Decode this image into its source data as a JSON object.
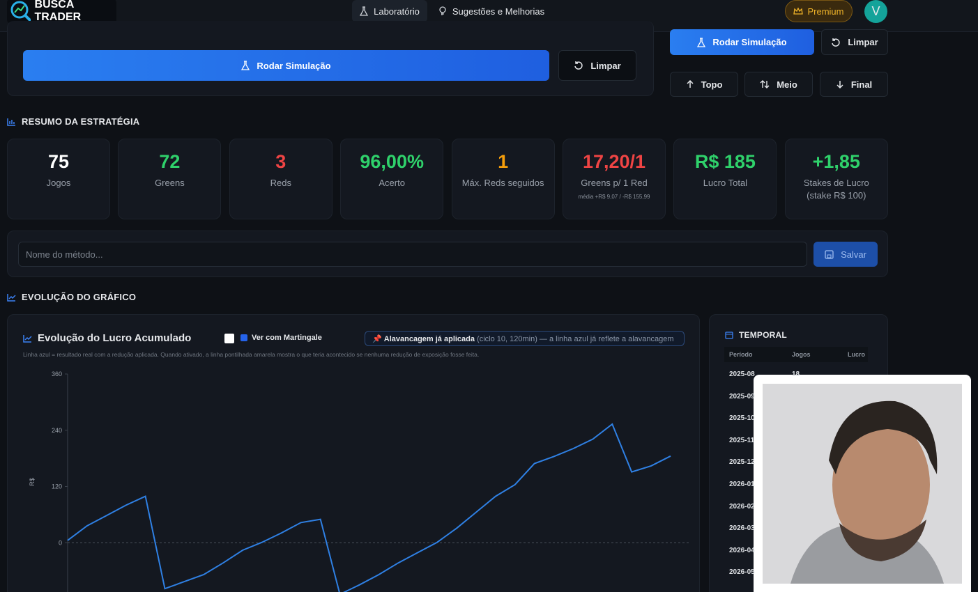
{
  "nav": {
    "brand": "BUSCA TRADER",
    "links": [
      "Laboratório",
      "Sugestões e Melhorias"
    ],
    "premium": "Premium",
    "avatar": "V"
  },
  "simulation": {
    "run": "Rodar Simulação",
    "clear": "Limpar"
  },
  "side": {
    "run": "Rodar Simulação",
    "clear": "Limpar",
    "top": "Topo",
    "middle": "Meio",
    "end": "Final"
  },
  "summary": {
    "heading": "RESUMO DA ESTRATÉGIA",
    "cards": [
      {
        "value": "75",
        "label": "Jogos"
      },
      {
        "value": "72",
        "label": "Greens"
      },
      {
        "value": "3",
        "label": "Reds"
      },
      {
        "value": "96,00%",
        "label": "Acerto"
      },
      {
        "value": "1",
        "label": "Máx. Reds seguidos"
      },
      {
        "value": "17,20/1",
        "label": "Greens p/ 1 Red",
        "note": "média +R$ 9,07 / -R$ 155,99"
      },
      {
        "value": "R$ 185",
        "label": "Lucro Total"
      },
      {
        "value": "+1,85",
        "label": "Stakes de Lucro (stake R$ 100)"
      }
    ]
  },
  "save": {
    "placeholder": "Nome do método...",
    "button": "Salvar"
  },
  "evolution": {
    "heading": "EVOLUÇÃO DO GRÁFICO",
    "title": "Evolução do Lucro Acumulado",
    "toggle": "Ver com Martingale",
    "badge": "Alavancagem já aplicada",
    "badge_detail": "(ciclo 10, 120min) — a linha azul já reflete a alavancagem",
    "note": "Linha azul = resultado real com a redução aplicada. Quando ativado, a linha pontilhada amarela mostra o que teria acontecido se nenhuma redução de exposição fosse feita."
  },
  "chart": {
    "type": "line",
    "ylabel": "R$",
    "ylim": [
      -120,
      360
    ],
    "yticks": [
      360,
      240,
      120,
      0
    ],
    "color": "#2f80e4",
    "values": [
      5,
      36,
      58,
      80,
      99,
      -98,
      -83,
      -68,
      -43,
      -16,
      1,
      21,
      43,
      50,
      -110,
      -90,
      -68,
      -43,
      -21,
      1,
      31,
      65,
      99,
      124,
      169,
      184,
      201,
      221,
      253,
      151,
      164,
      185
    ]
  },
  "temporal": {
    "heading": "TEMPORAL",
    "columns": [
      "Período",
      "Jogos",
      "Lucro"
    ],
    "rows": [
      [
        "2025-08",
        "18"
      ],
      [
        "2025-09"
      ],
      [
        "2025-10"
      ],
      [
        "2025-11"
      ],
      [
        "2025-12"
      ],
      [
        "2026-01"
      ],
      [
        "2026-02"
      ],
      [
        "2026-03"
      ],
      [
        "2026-04"
      ],
      [
        "2026-05"
      ]
    ]
  }
}
